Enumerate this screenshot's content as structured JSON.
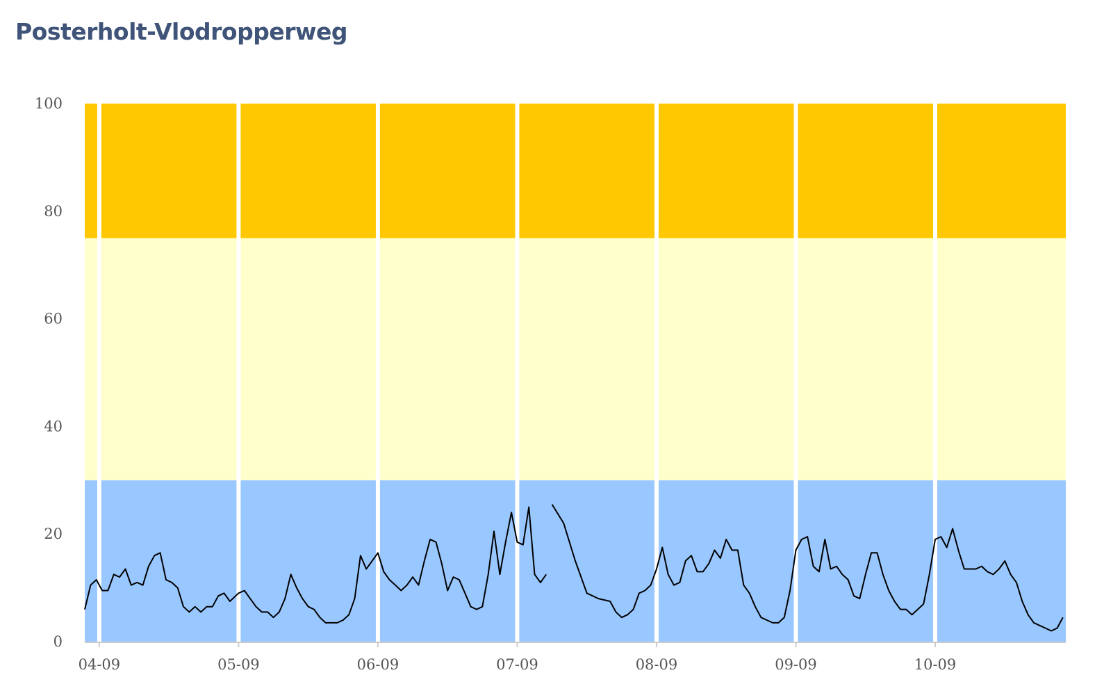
{
  "title": "Posterholt-Vlodropperweg",
  "chart_data": {
    "type": "line",
    "title": "Posterholt-Vlodropperweg",
    "xlabel": "",
    "ylabel": "",
    "ylim": [
      0,
      100
    ],
    "xlim": [
      "2023-09-03T21:30",
      "2023-09-10T22:30"
    ],
    "y_ticks": [
      0,
      20,
      40,
      60,
      80,
      100
    ],
    "x_tick_labels": [
      "04-09",
      "05-09",
      "06-09",
      "07-09",
      "08-09",
      "09-09",
      "10-09"
    ],
    "grid": false,
    "legend": "none",
    "bands": [
      {
        "from": 0,
        "to": 30,
        "color": "#99c7ff"
      },
      {
        "from": 30,
        "to": 75,
        "color": "#ffffcc"
      },
      {
        "from": 75,
        "to": 100,
        "color": "#ffc800"
      }
    ],
    "day_separators": [
      "2023-09-04",
      "2023-09-05",
      "2023-09-06",
      "2023-09-07",
      "2023-09-08",
      "2023-09-09",
      "2023-09-10"
    ],
    "line_color": "#000000",
    "segments": [
      {
        "x": [
          "2023-09-03T21:30",
          "2023-09-03T22:30",
          "2023-09-03T23:30",
          "2023-09-04T00:30",
          "2023-09-04T01:30",
          "2023-09-04T02:30",
          "2023-09-04T03:30",
          "2023-09-04T04:30",
          "2023-09-04T05:30",
          "2023-09-04T06:30",
          "2023-09-04T07:30",
          "2023-09-04T08:30",
          "2023-09-04T09:30",
          "2023-09-04T10:30",
          "2023-09-04T11:30",
          "2023-09-04T12:30",
          "2023-09-04T13:30",
          "2023-09-04T14:30",
          "2023-09-04T15:30",
          "2023-09-04T16:30",
          "2023-09-04T17:30",
          "2023-09-04T18:30",
          "2023-09-04T19:30",
          "2023-09-04T20:30",
          "2023-09-04T21:30",
          "2023-09-04T22:30",
          "2023-09-04T23:30",
          "2023-09-05T00:00",
          "2023-09-05T01:00",
          "2023-09-05T02:00",
          "2023-09-05T03:00",
          "2023-09-05T04:00",
          "2023-09-05T05:00",
          "2023-09-05T06:00",
          "2023-09-05T07:00",
          "2023-09-05T08:00",
          "2023-09-05T09:00",
          "2023-09-05T10:00",
          "2023-09-05T11:00",
          "2023-09-05T12:00",
          "2023-09-05T13:00",
          "2023-09-05T14:00",
          "2023-09-05T15:00",
          "2023-09-05T16:00",
          "2023-09-05T17:00",
          "2023-09-05T18:00",
          "2023-09-05T19:00",
          "2023-09-05T20:00",
          "2023-09-05T21:00",
          "2023-09-05T22:00",
          "2023-09-05T23:00",
          "2023-09-06T00:00",
          "2023-09-06T01:00",
          "2023-09-06T02:00",
          "2023-09-06T03:00",
          "2023-09-06T04:00",
          "2023-09-06T05:00",
          "2023-09-06T06:00",
          "2023-09-06T07:00",
          "2023-09-06T08:00",
          "2023-09-06T09:00",
          "2023-09-06T10:00",
          "2023-09-06T11:00",
          "2023-09-06T12:00",
          "2023-09-06T13:00",
          "2023-09-06T14:00",
          "2023-09-06T15:00",
          "2023-09-06T16:00",
          "2023-09-06T17:00",
          "2023-09-06T18:00",
          "2023-09-06T19:00",
          "2023-09-06T20:00",
          "2023-09-06T21:00",
          "2023-09-06T22:00",
          "2023-09-06T23:00",
          "2023-09-07T00:00",
          "2023-09-07T01:00",
          "2023-09-07T02:00",
          "2023-09-07T03:00",
          "2023-09-07T04:00",
          "2023-09-07T05:00"
        ],
        "y": [
          6,
          10.5,
          11.5,
          9.5,
          9.5,
          12.5,
          12,
          13.5,
          10.5,
          11,
          10.5,
          14,
          16,
          16.5,
          11.5,
          11,
          10,
          6.5,
          5.5,
          6.5,
          5.5,
          6.5,
          6.5,
          8.5,
          9,
          7.5,
          8.5,
          9,
          9.5,
          8,
          6.5,
          5.5,
          5.5,
          4.5,
          5.5,
          8,
          12.5,
          10,
          8,
          6.5,
          6,
          4.5,
          3.5,
          3.5,
          3.5,
          4,
          5,
          8,
          16,
          13.5,
          15,
          16.5,
          13,
          11.5,
          10.5,
          9.5,
          10.5,
          12,
          10.5,
          15,
          19,
          18.5,
          14.5,
          9.5,
          12,
          11.5,
          9,
          6.5,
          6,
          6.5,
          12.5,
          20.5,
          12.5,
          18.5,
          24,
          18.5,
          18,
          25,
          12.5,
          11,
          12.5
        ]
      },
      {
        "x": [
          "2023-09-07T06:00",
          "2023-09-07T08:00",
          "2023-09-07T10:00",
          "2023-09-07T12:00",
          "2023-09-07T14:00",
          "2023-09-07T16:00",
          "2023-09-07T17:00",
          "2023-09-07T18:00",
          "2023-09-07T19:00",
          "2023-09-07T20:00",
          "2023-09-07T21:00",
          "2023-09-07T22:00",
          "2023-09-07T23:00",
          "2023-09-08T00:00",
          "2023-09-08T01:00",
          "2023-09-08T02:00",
          "2023-09-08T03:00",
          "2023-09-08T04:00",
          "2023-09-08T05:00",
          "2023-09-08T06:00",
          "2023-09-08T07:00",
          "2023-09-08T08:00",
          "2023-09-08T09:00",
          "2023-09-08T10:00",
          "2023-09-08T11:00",
          "2023-09-08T12:00",
          "2023-09-08T13:00",
          "2023-09-08T14:00",
          "2023-09-08T15:00",
          "2023-09-08T16:00",
          "2023-09-08T17:00",
          "2023-09-08T18:00",
          "2023-09-08T19:00",
          "2023-09-08T20:00",
          "2023-09-08T21:00",
          "2023-09-08T22:00",
          "2023-09-08T23:00",
          "2023-09-09T00:00",
          "2023-09-09T01:00",
          "2023-09-09T02:00",
          "2023-09-09T03:00",
          "2023-09-09T04:00",
          "2023-09-09T05:00",
          "2023-09-09T06:00",
          "2023-09-09T07:00",
          "2023-09-09T08:00",
          "2023-09-09T09:00",
          "2023-09-09T10:00",
          "2023-09-09T11:00",
          "2023-09-09T12:00",
          "2023-09-09T13:00",
          "2023-09-09T14:00",
          "2023-09-09T15:00",
          "2023-09-09T16:00",
          "2023-09-09T17:00",
          "2023-09-09T18:00",
          "2023-09-09T19:00",
          "2023-09-09T20:00",
          "2023-09-09T21:00",
          "2023-09-09T22:00",
          "2023-09-09T23:00",
          "2023-09-10T00:00",
          "2023-09-10T01:00",
          "2023-09-10T02:00",
          "2023-09-10T03:00",
          "2023-09-10T04:00",
          "2023-09-10T05:00",
          "2023-09-10T06:00",
          "2023-09-10T07:00",
          "2023-09-10T08:00",
          "2023-09-10T09:00",
          "2023-09-10T10:00",
          "2023-09-10T11:00",
          "2023-09-10T12:00",
          "2023-09-10T13:00",
          "2023-09-10T14:00",
          "2023-09-10T15:00",
          "2023-09-10T16:00",
          "2023-09-10T17:00",
          "2023-09-10T18:00",
          "2023-09-10T19:00",
          "2023-09-10T20:00",
          "2023-09-10T21:00",
          "2023-09-10T22:00"
        ],
        "y": [
          25.5,
          22,
          15,
          9,
          8,
          7.5,
          5.5,
          4.5,
          5,
          6,
          9,
          9.5,
          10.5,
          13.5,
          17.5,
          12.5,
          10.5,
          11,
          15,
          16,
          13,
          13,
          14.5,
          17,
          15.5,
          19,
          17,
          17,
          10.5,
          9,
          6.5,
          4.5,
          4,
          3.5,
          3.5,
          4.5,
          9.5,
          17,
          19,
          19.5,
          14,
          13,
          19,
          13.5,
          14,
          12.5,
          11.5,
          8.5,
          8,
          12.5,
          16.5,
          16.5,
          12.5,
          9.5,
          7.5,
          6,
          6,
          5,
          6,
          7,
          12.5,
          19,
          19.5,
          17.5,
          21,
          17,
          13.5,
          13.5,
          13.5,
          14,
          13,
          12.5,
          13.5,
          15,
          12.5,
          11,
          7.5,
          5,
          3.5,
          3,
          2.5,
          2,
          2.5,
          4.5
        ]
      }
    ]
  }
}
